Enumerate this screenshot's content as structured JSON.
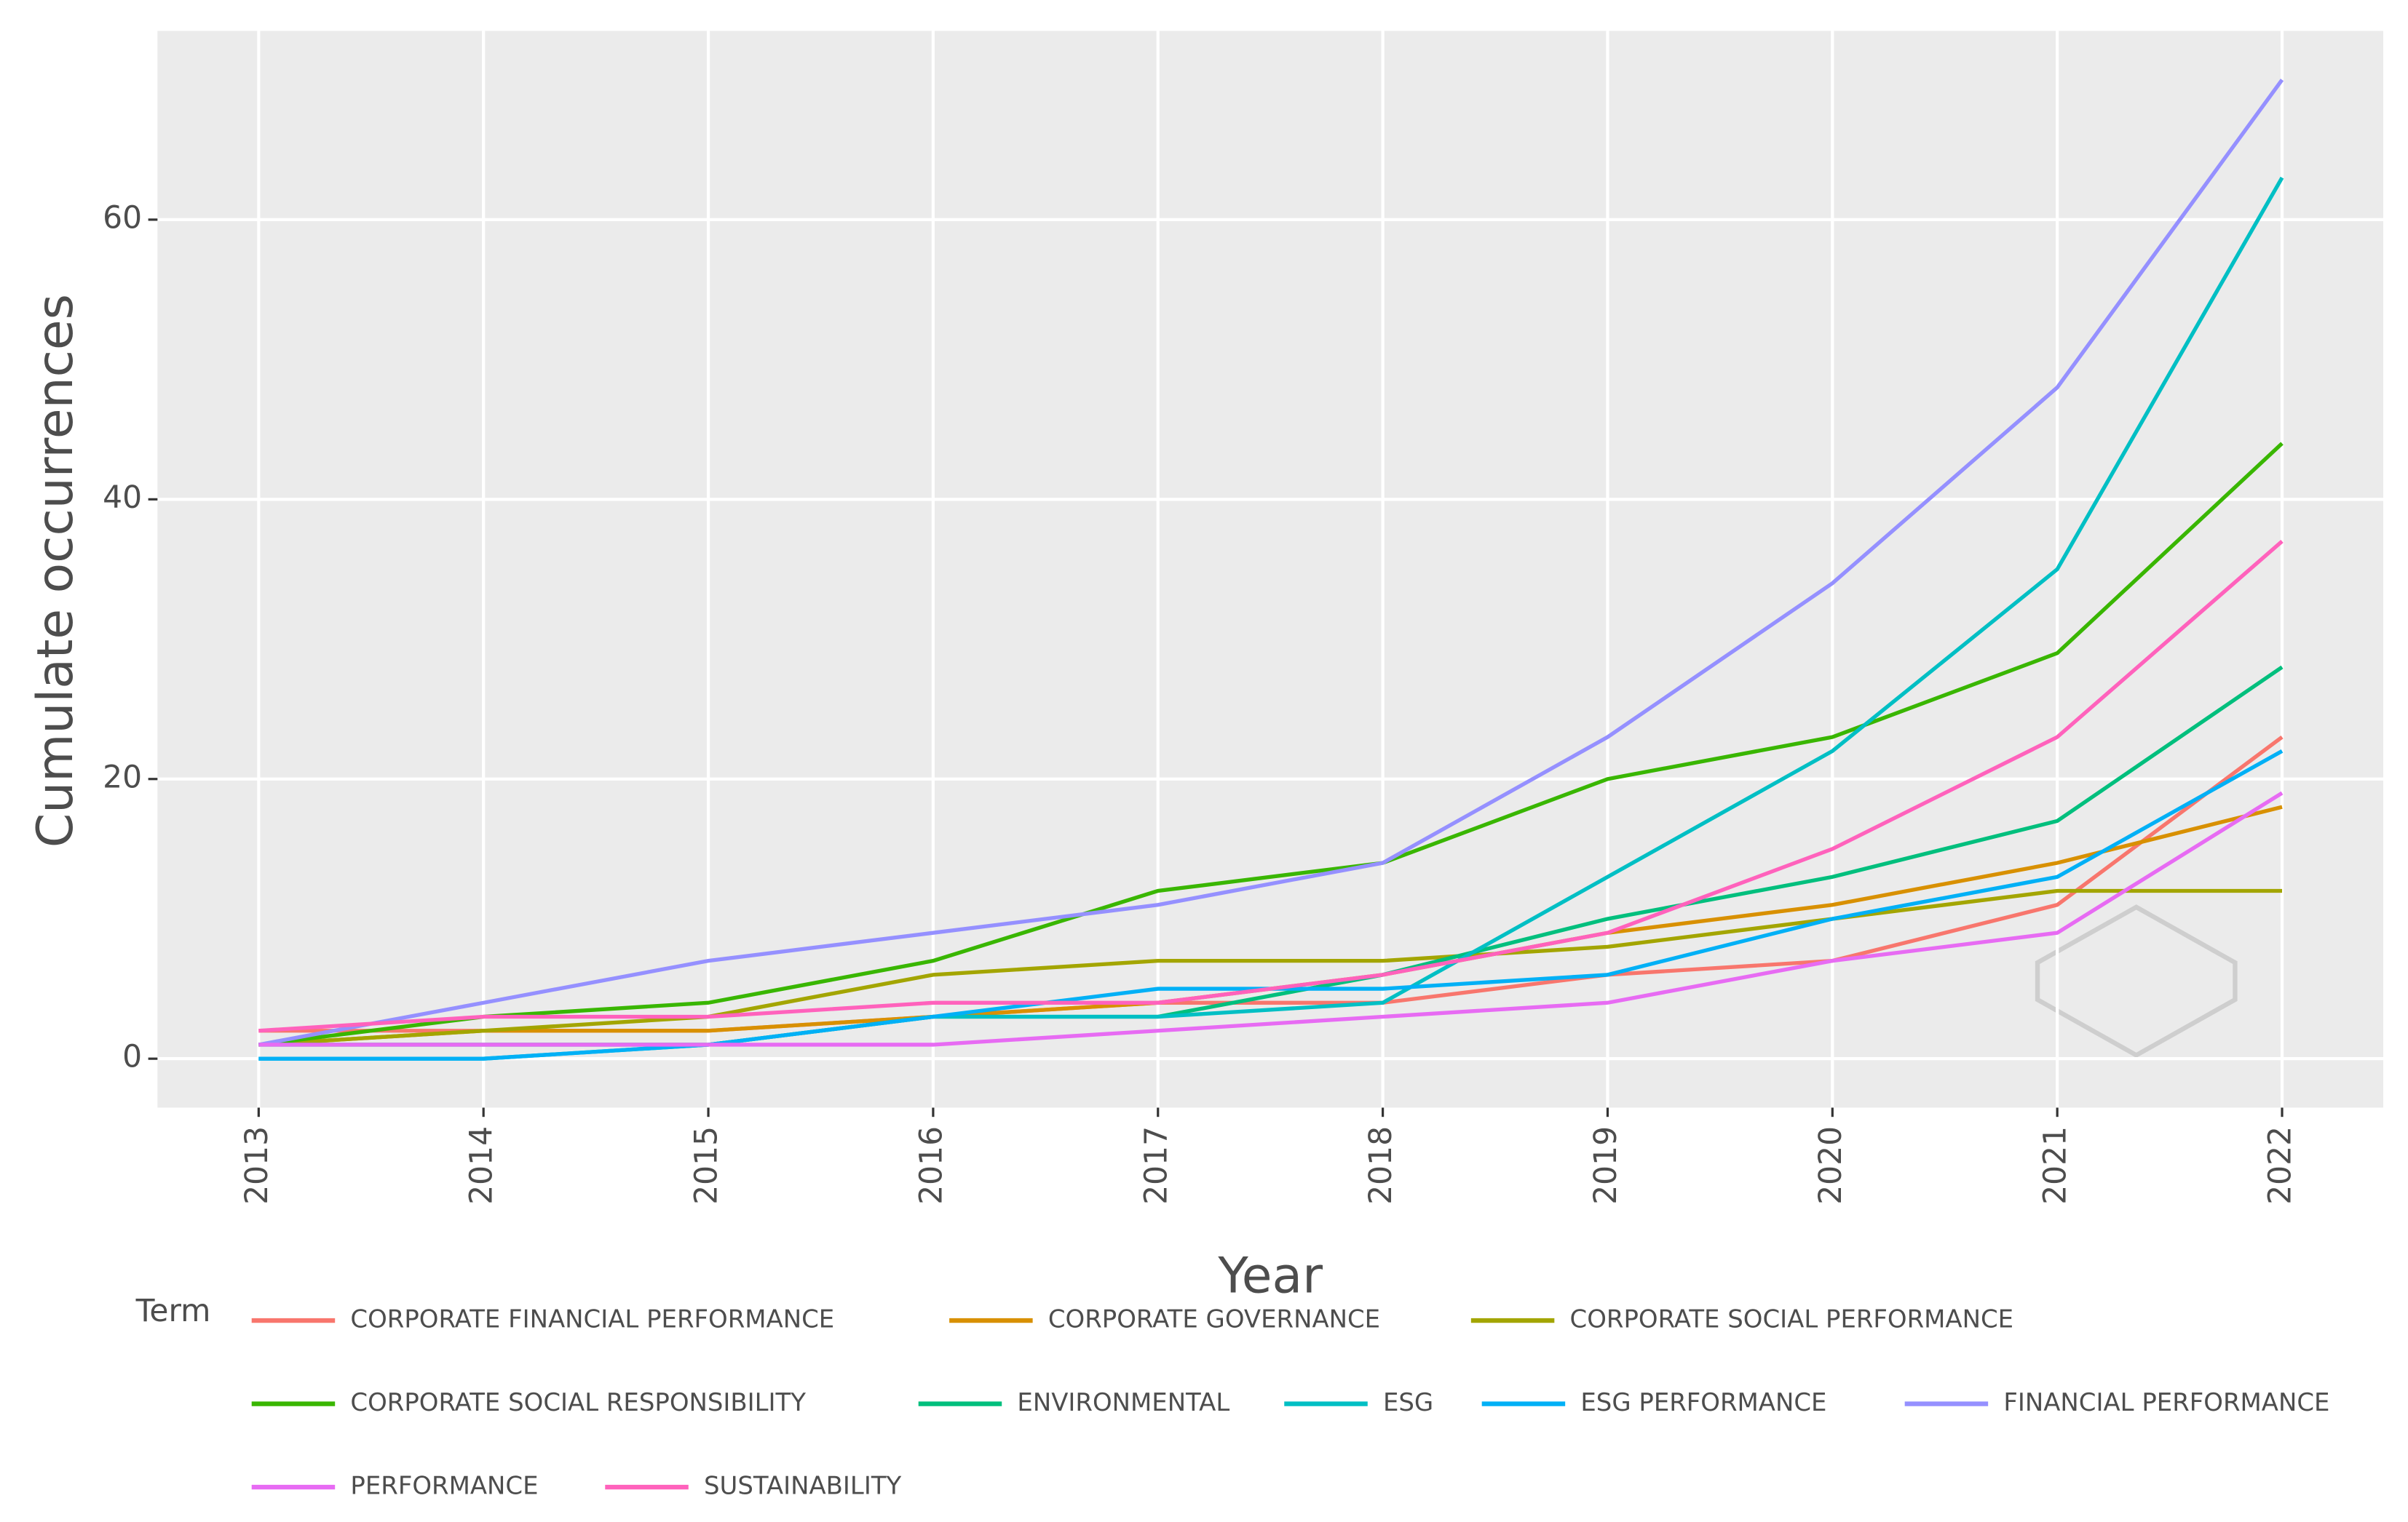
{
  "chart_data": {
    "type": "line",
    "x_label": "Year",
    "y_label": "Cumulate occurrences",
    "legend_title": "Term",
    "x": [
      2013,
      2014,
      2015,
      2016,
      2017,
      2018,
      2019,
      2020,
      2021,
      2022
    ],
    "xlim": [
      2012.55,
      2022.45
    ],
    "xticks": [
      2013,
      2014,
      2015,
      2016,
      2017,
      2018,
      2019,
      2020,
      2021,
      2022
    ],
    "ylim": [
      -3.5,
      73.5
    ],
    "yticks": [
      0,
      20,
      40,
      60
    ],
    "grid": true,
    "legend": "bottom",
    "series": [
      {
        "name": "CORPORATE FINANCIAL PERFORMANCE",
        "color": "#F8766D",
        "values": [
          2,
          2,
          2,
          3,
          4,
          4,
          6,
          7,
          11,
          23
        ]
      },
      {
        "name": "CORPORATE GOVERNANCE",
        "color": "#D89000",
        "values": [
          1,
          2,
          2,
          3,
          4,
          6,
          9,
          11,
          14,
          18
        ]
      },
      {
        "name": "CORPORATE SOCIAL PERFORMANCE",
        "color": "#A3A500",
        "values": [
          1,
          2,
          3,
          6,
          7,
          7,
          8,
          10,
          12,
          12
        ]
      },
      {
        "name": "CORPORATE SOCIAL RESPONSIBILITY",
        "color": "#39B600",
        "values": [
          1,
          3,
          4,
          7,
          12,
          14,
          20,
          23,
          29,
          44
        ]
      },
      {
        "name": "ENVIRONMENTAL",
        "color": "#00BF7D",
        "values": [
          1,
          1,
          1,
          3,
          3,
          6,
          10,
          13,
          17,
          28
        ]
      },
      {
        "name": "ESG",
        "color": "#00BFC4",
        "values": [
          0,
          0,
          1,
          3,
          3,
          4,
          13,
          22,
          35,
          63
        ]
      },
      {
        "name": "ESG PERFORMANCE",
        "color": "#00B0F6",
        "values": [
          0,
          0,
          1,
          3,
          5,
          5,
          6,
          10,
          13,
          22
        ]
      },
      {
        "name": "FINANCIAL PERFORMANCE",
        "color": "#9590FF",
        "values": [
          1,
          4,
          7,
          9,
          11,
          14,
          23,
          34,
          48,
          70
        ]
      },
      {
        "name": "PERFORMANCE",
        "color": "#E76BF3",
        "values": [
          1,
          1,
          1,
          1,
          2,
          3,
          4,
          7,
          9,
          19
        ]
      },
      {
        "name": "SUSTAINABILITY",
        "color": "#FF62BC",
        "values": [
          2,
          3,
          3,
          4,
          4,
          6,
          9,
          15,
          23,
          37
        ]
      }
    ]
  }
}
